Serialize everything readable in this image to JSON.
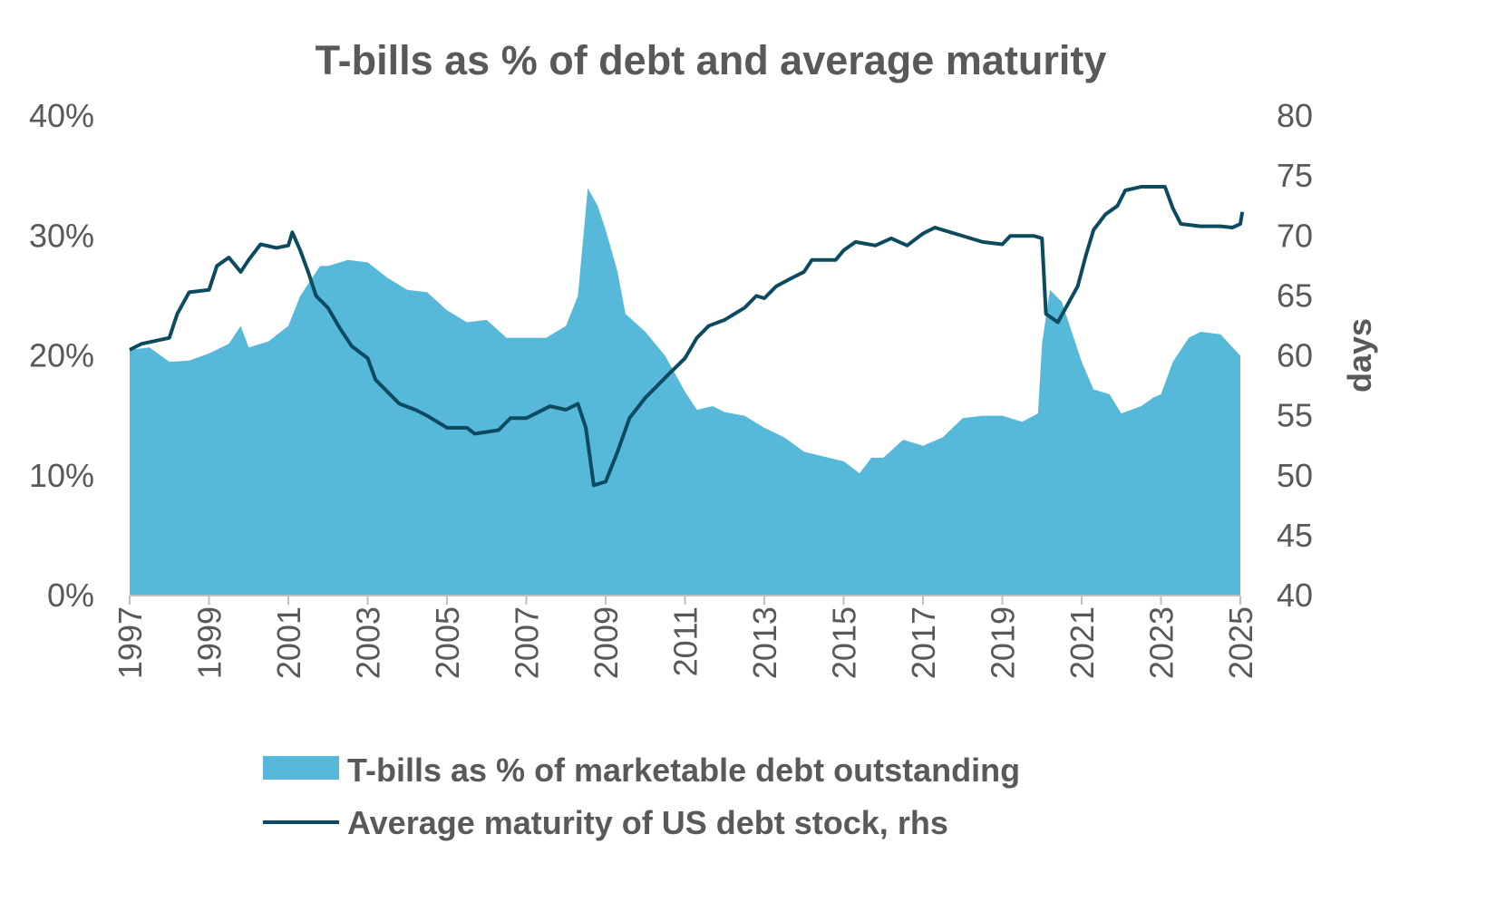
{
  "chart_data": {
    "type": "area+line",
    "title": "T-bills as % of debt and average maturity",
    "y_left": {
      "range": [
        0,
        40
      ],
      "ticks": [
        "0%",
        "10%",
        "20%",
        "30%",
        "40%"
      ],
      "label": ""
    },
    "y_right": {
      "range": [
        40,
        80
      ],
      "ticks": [
        "40",
        "45",
        "50",
        "55",
        "60",
        "65",
        "70",
        "75",
        "80"
      ],
      "label": "days"
    },
    "x": {
      "range": [
        1997,
        2025
      ],
      "ticks": [
        "1997",
        "1999",
        "2001",
        "2003",
        "2005",
        "2007",
        "2009",
        "2011",
        "2013",
        "2015",
        "2017",
        "2019",
        "2021",
        "2023",
        "2025"
      ]
    },
    "grid": false,
    "legend_placement": "bottom",
    "series": [
      {
        "name": "T-bills as % of marketable debt outstanding",
        "type": "area",
        "axis": "left",
        "color": "#56b9da",
        "points": [
          [
            1997.0,
            20.5
          ],
          [
            1997.5,
            20.7
          ],
          [
            1998.0,
            19.5
          ],
          [
            1998.5,
            19.6
          ],
          [
            1999.0,
            20.2
          ],
          [
            1999.5,
            21.0
          ],
          [
            1999.8,
            22.5
          ],
          [
            2000.0,
            20.7
          ],
          [
            2000.5,
            21.2
          ],
          [
            2001.0,
            22.5
          ],
          [
            2001.3,
            25
          ],
          [
            2001.5,
            26
          ],
          [
            2001.8,
            27.5
          ],
          [
            2002.0,
            27.5
          ],
          [
            2002.5,
            28.0
          ],
          [
            2003.0,
            27.8
          ],
          [
            2003.5,
            26.5
          ],
          [
            2004.0,
            25.5
          ],
          [
            2004.5,
            25.3
          ],
          [
            2005.0,
            23.8
          ],
          [
            2005.5,
            22.8
          ],
          [
            2006.0,
            23
          ],
          [
            2006.5,
            21.5
          ],
          [
            2007.0,
            21.5
          ],
          [
            2007.5,
            21.5
          ],
          [
            2008.0,
            22.5
          ],
          [
            2008.3,
            25
          ],
          [
            2008.55,
            34
          ],
          [
            2008.8,
            32.5
          ],
          [
            2009.0,
            30.5
          ],
          [
            2009.3,
            27
          ],
          [
            2009.5,
            23.5
          ],
          [
            2010.0,
            22
          ],
          [
            2010.5,
            20
          ],
          [
            2011.0,
            17
          ],
          [
            2011.3,
            15.5
          ],
          [
            2011.7,
            15.8
          ],
          [
            2012.0,
            15.3
          ],
          [
            2012.5,
            15
          ],
          [
            2013.0,
            14
          ],
          [
            2013.5,
            13.2
          ],
          [
            2014.0,
            12
          ],
          [
            2014.5,
            11.6
          ],
          [
            2015.0,
            11.2
          ],
          [
            2015.4,
            10.2
          ],
          [
            2015.7,
            11.5
          ],
          [
            2016.0,
            11.5
          ],
          [
            2016.5,
            13
          ],
          [
            2017.0,
            12.5
          ],
          [
            2017.5,
            13.2
          ],
          [
            2018.0,
            14.8
          ],
          [
            2018.5,
            15
          ],
          [
            2019.0,
            15
          ],
          [
            2019.5,
            14.5
          ],
          [
            2019.9,
            15.2
          ],
          [
            2020.0,
            21
          ],
          [
            2020.2,
            25.5
          ],
          [
            2020.5,
            24.5
          ],
          [
            2021.0,
            19.5
          ],
          [
            2021.3,
            17.2
          ],
          [
            2021.7,
            16.8
          ],
          [
            2022.0,
            15.2
          ],
          [
            2022.5,
            15.8
          ],
          [
            2022.8,
            16.5
          ],
          [
            2023.0,
            16.8
          ],
          [
            2023.3,
            19.5
          ],
          [
            2023.7,
            21.5
          ],
          [
            2024.0,
            22
          ],
          [
            2024.5,
            21.8
          ],
          [
            2025.0,
            20.0
          ]
        ]
      },
      {
        "name": "Average maturity of US debt stock, rhs",
        "type": "line",
        "axis": "right",
        "color": "#0b4a5f",
        "points": [
          [
            1997.0,
            60.5
          ],
          [
            1997.3,
            61
          ],
          [
            1998.0,
            61.5
          ],
          [
            1998.2,
            63.5
          ],
          [
            1998.5,
            65.3
          ],
          [
            1999.0,
            65.5
          ],
          [
            1999.2,
            67.5
          ],
          [
            1999.5,
            68.2
          ],
          [
            1999.8,
            67
          ],
          [
            2000.0,
            68
          ],
          [
            2000.3,
            69.3
          ],
          [
            2000.7,
            69.0
          ],
          [
            2001.0,
            69.2
          ],
          [
            2001.1,
            70.3
          ],
          [
            2001.3,
            68.8
          ],
          [
            2001.5,
            67
          ],
          [
            2001.7,
            65
          ],
          [
            2002.0,
            64
          ],
          [
            2002.3,
            62.3
          ],
          [
            2002.6,
            60.8
          ],
          [
            2003.0,
            59.8
          ],
          [
            2003.2,
            58
          ],
          [
            2003.5,
            57
          ],
          [
            2003.8,
            56
          ],
          [
            2004.2,
            55.5
          ],
          [
            2004.5,
            55
          ],
          [
            2005.0,
            54.0
          ],
          [
            2005.5,
            54
          ],
          [
            2005.7,
            53.5
          ],
          [
            2006.3,
            53.8
          ],
          [
            2006.6,
            54.8
          ],
          [
            2007.0,
            54.8
          ],
          [
            2007.3,
            55.3
          ],
          [
            2007.6,
            55.8
          ],
          [
            2008.0,
            55.5
          ],
          [
            2008.3,
            56
          ],
          [
            2008.5,
            54
          ],
          [
            2008.7,
            49.2
          ],
          [
            2009.0,
            49.5
          ],
          [
            2009.3,
            52
          ],
          [
            2009.6,
            54.8
          ],
          [
            2010.0,
            56.5
          ],
          [
            2010.3,
            57.5
          ],
          [
            2010.6,
            58.5
          ],
          [
            2011.0,
            59.8
          ],
          [
            2011.3,
            61.5
          ],
          [
            2011.6,
            62.5
          ],
          [
            2012.0,
            63
          ],
          [
            2012.5,
            64
          ],
          [
            2012.8,
            65
          ],
          [
            2013.0,
            64.8
          ],
          [
            2013.3,
            65.8
          ],
          [
            2013.7,
            66.5
          ],
          [
            2014.0,
            67
          ],
          [
            2014.2,
            68
          ],
          [
            2014.8,
            68
          ],
          [
            2015.0,
            68.8
          ],
          [
            2015.3,
            69.5
          ],
          [
            2015.8,
            69.2
          ],
          [
            2016.2,
            69.8
          ],
          [
            2016.6,
            69.2
          ],
          [
            2017.0,
            70.2
          ],
          [
            2017.3,
            70.7
          ],
          [
            2017.7,
            70.3
          ],
          [
            2018.0,
            70
          ],
          [
            2018.5,
            69.5
          ],
          [
            2019.0,
            69.3
          ],
          [
            2019.2,
            70
          ],
          [
            2019.8,
            70
          ],
          [
            2020.0,
            69.8
          ],
          [
            2020.1,
            63.5
          ],
          [
            2020.4,
            62.8
          ],
          [
            2020.6,
            64
          ],
          [
            2020.9,
            65.8
          ],
          [
            2021.1,
            68.3
          ],
          [
            2021.3,
            70.5
          ],
          [
            2021.6,
            71.8
          ],
          [
            2021.9,
            72.5
          ],
          [
            2022.1,
            73.8
          ],
          [
            2022.5,
            74.1
          ],
          [
            2023.1,
            74.1
          ],
          [
            2023.3,
            72.3
          ],
          [
            2023.5,
            71
          ],
          [
            2024.0,
            70.8
          ],
          [
            2024.5,
            70.8
          ],
          [
            2024.8,
            70.7
          ],
          [
            2025.0,
            71
          ],
          [
            2025.05,
            72
          ]
        ]
      }
    ]
  }
}
